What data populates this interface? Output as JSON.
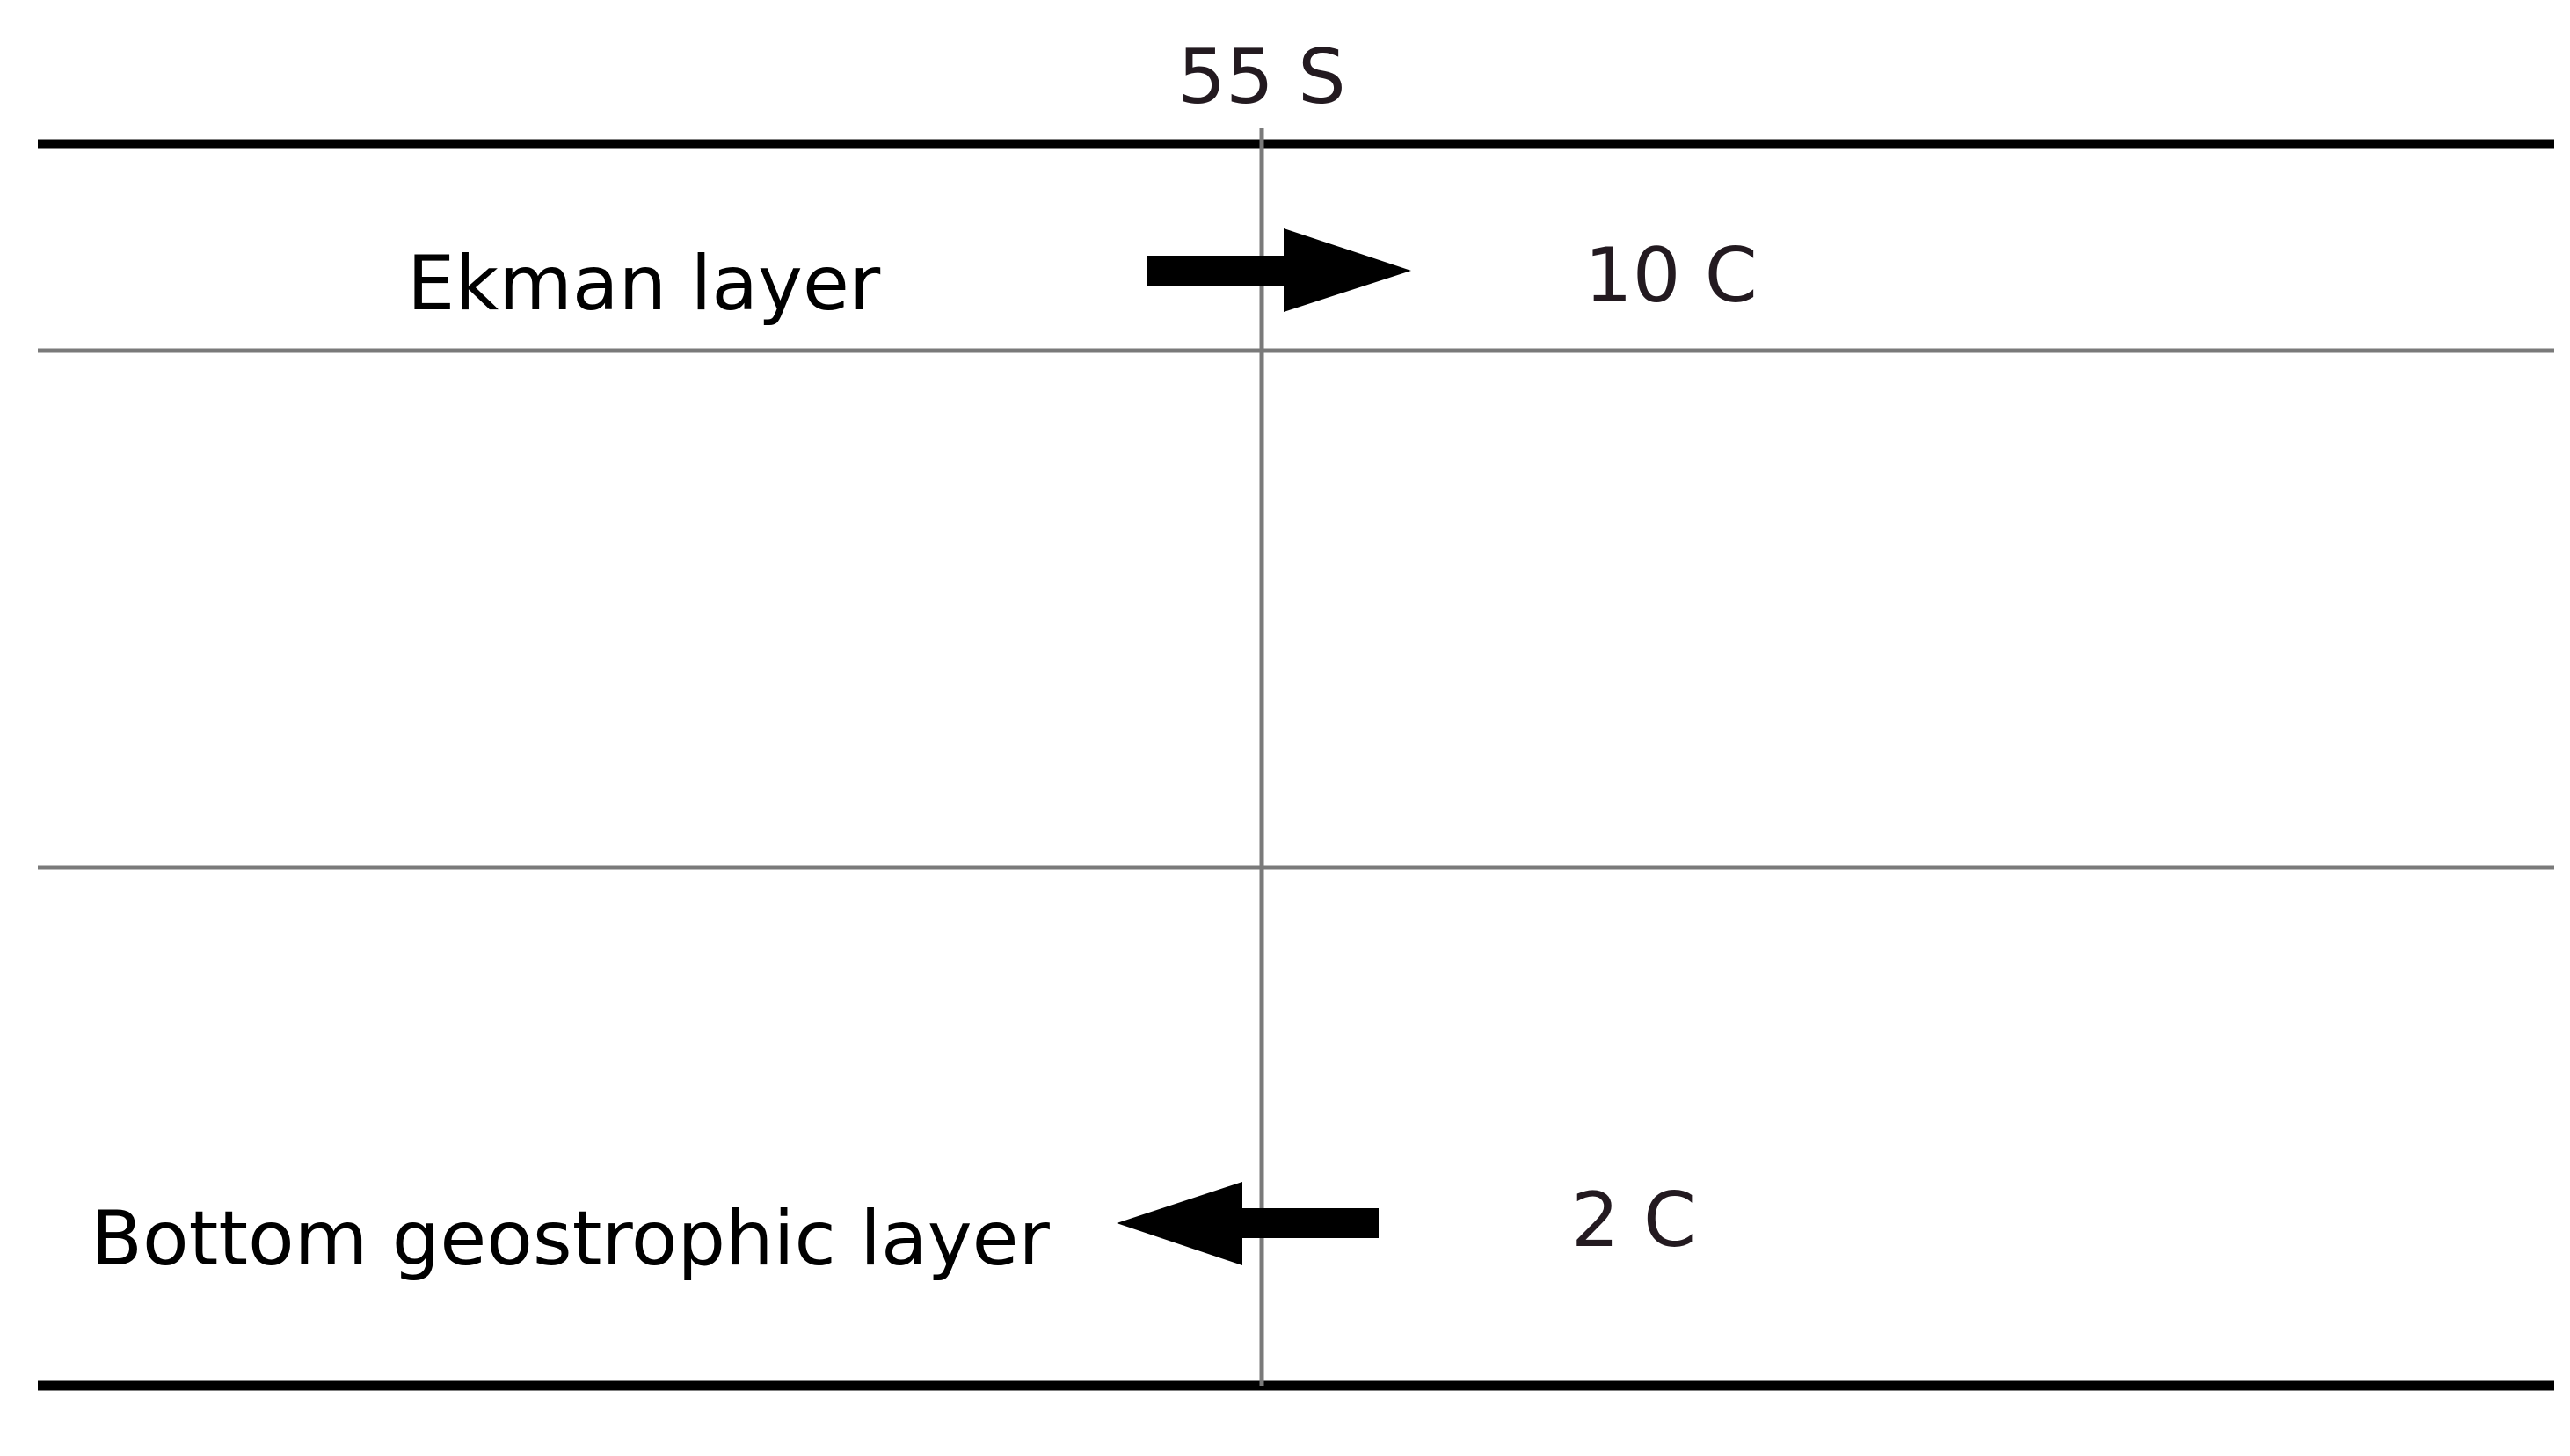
{
  "latitude_label": "55 S",
  "layers": {
    "top": {
      "name": "Ekman layer",
      "temperature": "10 C",
      "flow_direction": "east"
    },
    "bottom": {
      "name": "Bottom geostrophic layer",
      "temperature": "2 C",
      "flow_direction": "west"
    }
  },
  "colors": {
    "boundary": "#000000",
    "interface": "#7a7a7a",
    "arrow": "#000000",
    "text": "#000000",
    "value_text": "#231a20"
  }
}
